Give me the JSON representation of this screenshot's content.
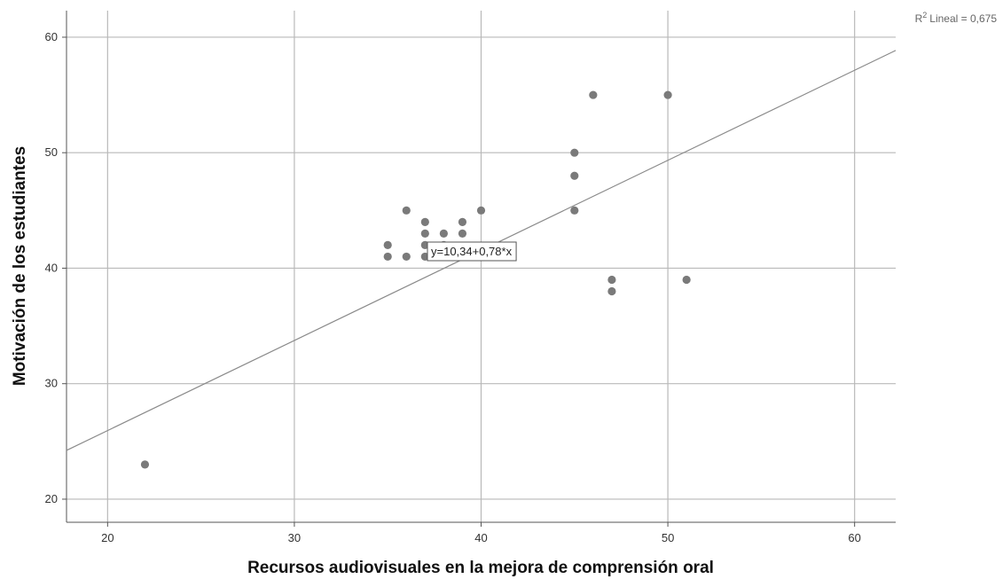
{
  "colors": {
    "point": "#7a7a7a",
    "grid": "#b9b9b9",
    "fit_line": "#8a8a8a",
    "axis": "#555555"
  },
  "chart_data": {
    "type": "scatter",
    "xlabel": "Recursos audiovisuales en la mejora de comprensión oral",
    "ylabel": "Motivación de los estudiantes",
    "xlim": [
      17.8,
      62.2
    ],
    "ylim": [
      18,
      62.3
    ],
    "x_ticks": [
      20,
      30,
      40,
      50,
      60
    ],
    "y_ticks": [
      20,
      30,
      40,
      50,
      60
    ],
    "grid": true,
    "points": [
      {
        "x": 22,
        "y": 23
      },
      {
        "x": 35,
        "y": 42
      },
      {
        "x": 35,
        "y": 41
      },
      {
        "x": 36,
        "y": 45
      },
      {
        "x": 36,
        "y": 41
      },
      {
        "x": 37,
        "y": 44
      },
      {
        "x": 37,
        "y": 43
      },
      {
        "x": 37,
        "y": 42
      },
      {
        "x": 37,
        "y": 41
      },
      {
        "x": 38,
        "y": 43
      },
      {
        "x": 38,
        "y": 42
      },
      {
        "x": 38,
        "y": 41
      },
      {
        "x": 39,
        "y": 44
      },
      {
        "x": 39,
        "y": 43
      },
      {
        "x": 40,
        "y": 45
      },
      {
        "x": 45,
        "y": 50
      },
      {
        "x": 45,
        "y": 48
      },
      {
        "x": 45,
        "y": 45
      },
      {
        "x": 46,
        "y": 55
      },
      {
        "x": 47,
        "y": 39
      },
      {
        "x": 47,
        "y": 38
      },
      {
        "x": 50,
        "y": 55
      },
      {
        "x": 51,
        "y": 39
      }
    ],
    "fit_line": {
      "intercept": 10.34,
      "slope": 0.78
    },
    "fit_equation": "y=10,34+0,78*x",
    "r2_label": "Lineal = 0,675",
    "r2_prefix": "R",
    "r2_superscript": "2"
  }
}
